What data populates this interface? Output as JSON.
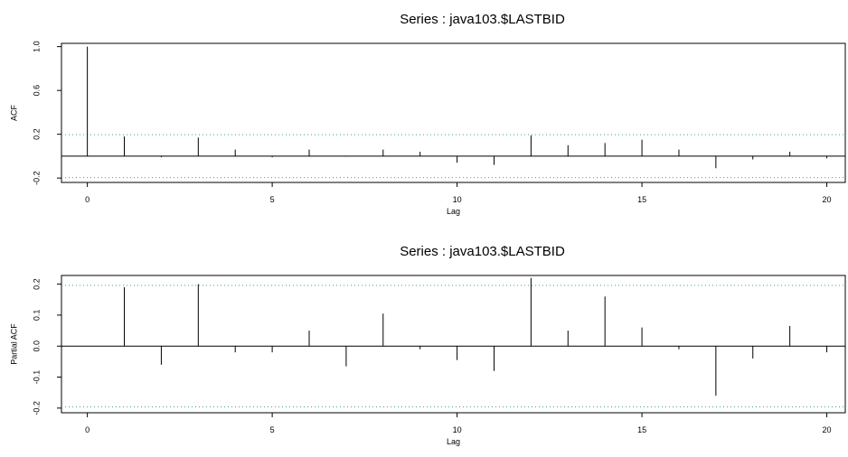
{
  "chart_data": [
    {
      "type": "bar",
      "title": "Series : java103.$LASTBID",
      "xlabel": "Lag",
      "ylabel": "ACF",
      "x": [
        0,
        1,
        2,
        3,
        4,
        5,
        6,
        7,
        8,
        9,
        10,
        11,
        12,
        13,
        14,
        15,
        16,
        17,
        18,
        19,
        20
      ],
      "values": [
        1.0,
        0.18,
        -0.01,
        0.17,
        0.06,
        -0.01,
        0.06,
        -0.005,
        0.06,
        0.04,
        -0.06,
        -0.08,
        0.19,
        0.1,
        0.12,
        0.15,
        0.06,
        -0.11,
        -0.03,
        0.04,
        -0.02
      ],
      "xlim": [
        -0.7,
        20.5
      ],
      "ylim": [
        -0.24,
        1.03
      ],
      "xticks": [
        "0",
        "5",
        "10",
        "15",
        "20"
      ],
      "yticks": [
        "-0.2",
        "0.2",
        "0.6",
        "1.0"
      ],
      "confidence_bound": 0.196,
      "grid": false
    },
    {
      "type": "bar",
      "title": "Series : java103.$LASTBID",
      "xlabel": "Lag",
      "ylabel": "Partial ACF",
      "x": [
        1,
        2,
        3,
        4,
        5,
        6,
        7,
        8,
        9,
        10,
        11,
        12,
        13,
        14,
        15,
        16,
        17,
        18,
        19,
        20
      ],
      "values": [
        0.19,
        -0.06,
        0.2,
        -0.02,
        -0.02,
        0.05,
        -0.065,
        0.105,
        -0.01,
        -0.045,
        -0.08,
        0.22,
        0.05,
        0.16,
        0.06,
        -0.01,
        -0.16,
        -0.04,
        0.065,
        -0.02
      ],
      "xlim": [
        -0.7,
        20.5
      ],
      "ylim": [
        -0.215,
        0.228
      ],
      "xticks": [
        "0",
        "5",
        "10",
        "15",
        "20"
      ],
      "yticks": [
        "-0.2",
        "-0.1",
        "0.0",
        "0.1",
        "0.2"
      ],
      "confidence_bound": 0.196,
      "grid": false
    }
  ]
}
